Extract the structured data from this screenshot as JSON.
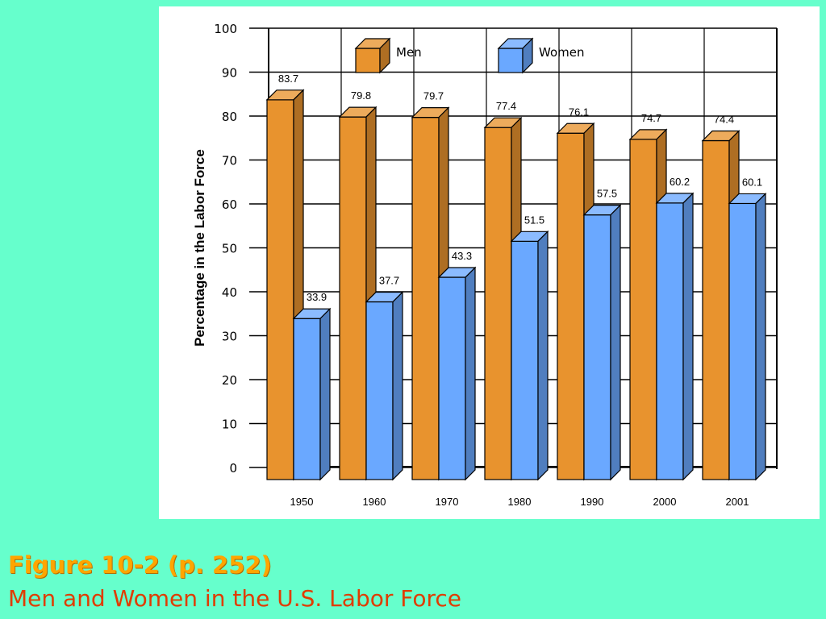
{
  "caption": {
    "title": "Figure 10-2  (p. 252)",
    "subtitle": "Men and Women in the U.S. Labor Force"
  },
  "colors": {
    "background": "#66ffcc",
    "men_front": "#e8932e",
    "women_front": "#6aa8ff",
    "caption_title": "#ffa500",
    "caption_subtitle": "#e03c00"
  },
  "chart_data": {
    "type": "bar",
    "categories": [
      "1950",
      "1960",
      "1970",
      "1980",
      "1990",
      "2000",
      "2001"
    ],
    "series": [
      {
        "name": "Men",
        "values": [
          83.7,
          79.8,
          79.7,
          77.4,
          76.1,
          74.7,
          74.4
        ]
      },
      {
        "name": "Women",
        "values": [
          33.9,
          37.7,
          43.3,
          51.5,
          57.5,
          60.2,
          60.1
        ]
      }
    ],
    "ylabel": "Percentage in the Labor Force",
    "xlabel": "",
    "ylim": [
      0,
      100
    ],
    "yticks": [
      0,
      10,
      20,
      30,
      40,
      50,
      60,
      70,
      80,
      90,
      100
    ],
    "grid": true,
    "legend": "top",
    "style": "3d"
  }
}
